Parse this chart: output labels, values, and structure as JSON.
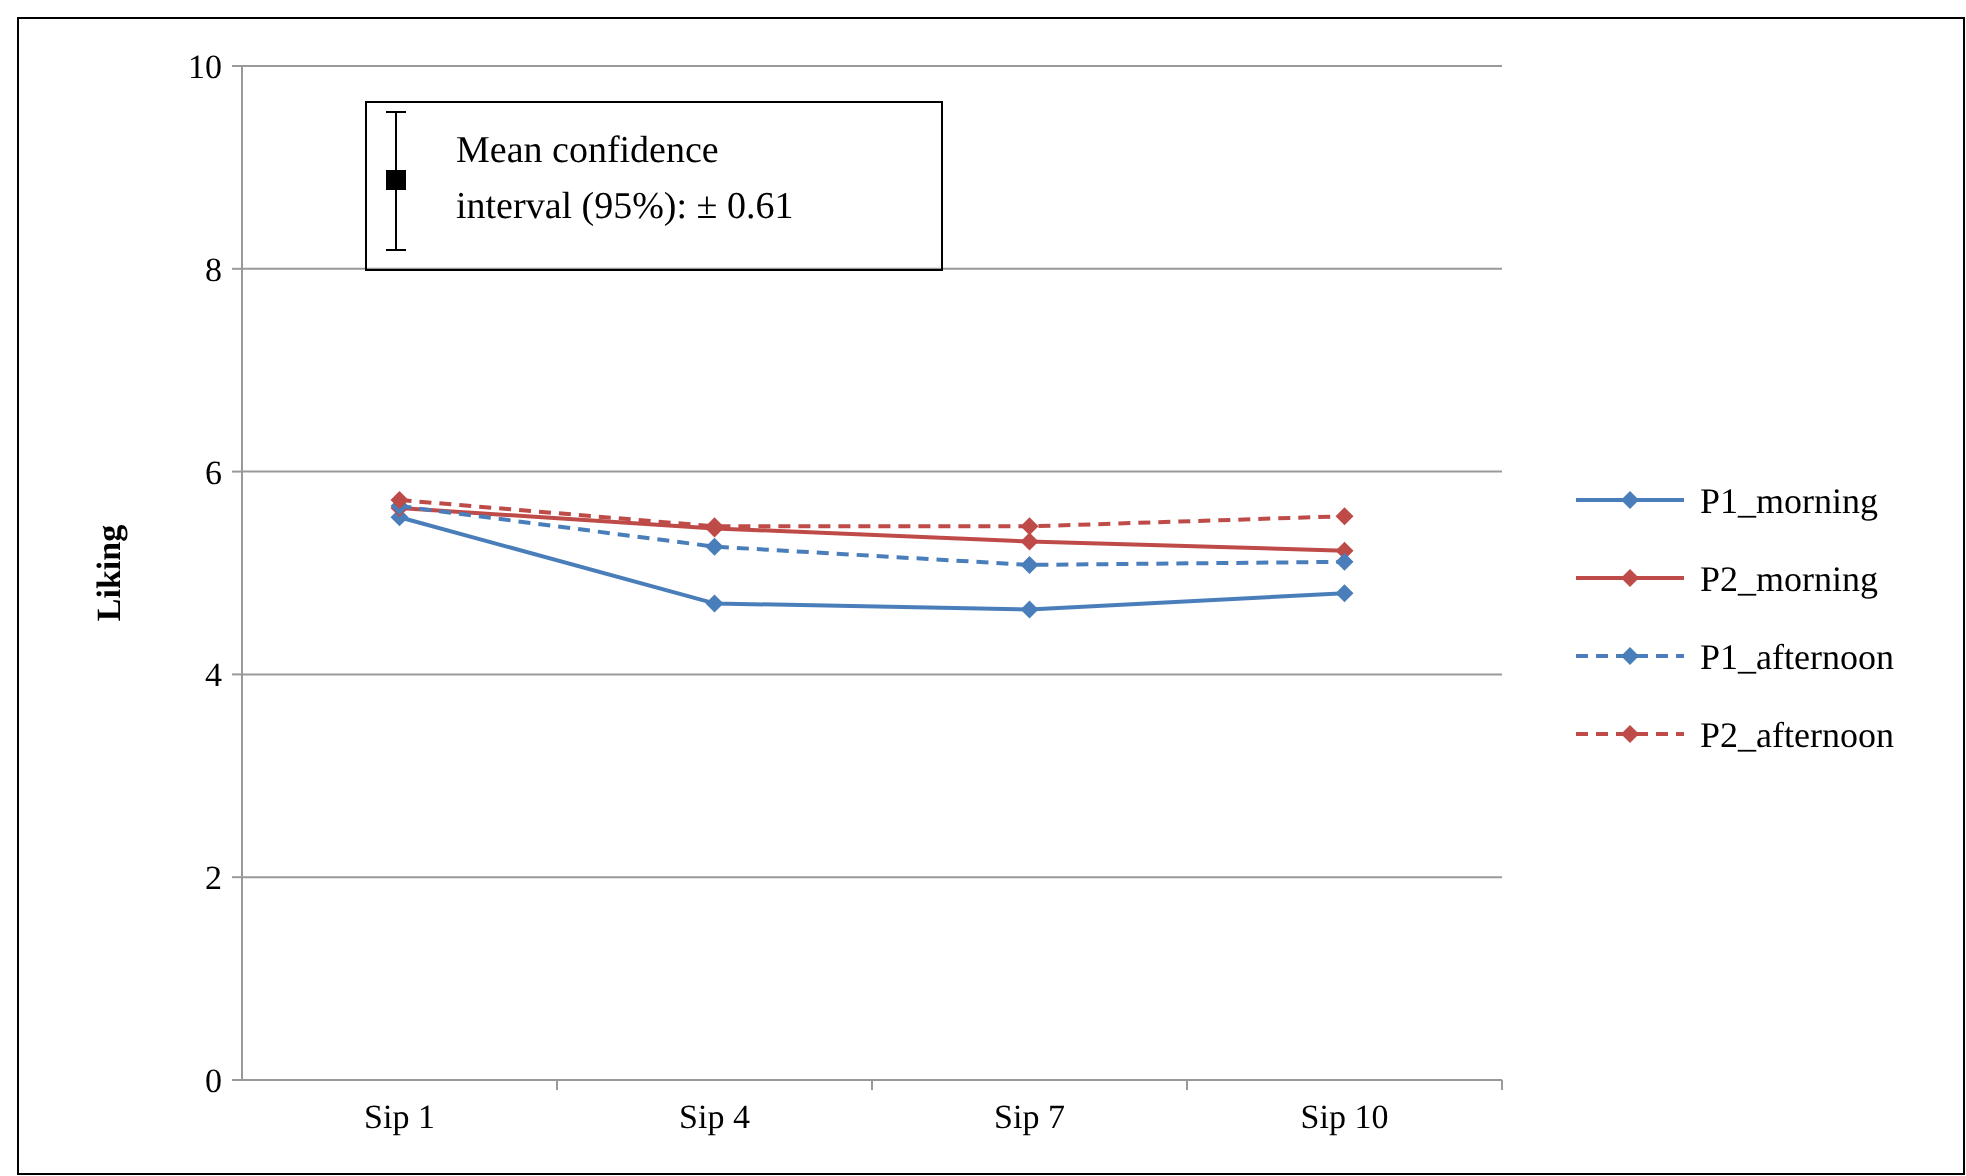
{
  "chart_data": {
    "type": "line",
    "categories": [
      "Sip 1",
      "Sip 4",
      "Sip 7",
      "Sip 10"
    ],
    "series": [
      {
        "name": "P1_morning",
        "color": "#4a7ebb",
        "line_style": "solid",
        "values": [
          5.55,
          4.7,
          4.64,
          4.8
        ]
      },
      {
        "name": "P2_morning",
        "color": "#be4b48",
        "line_style": "solid",
        "values": [
          5.64,
          5.44,
          5.31,
          5.22
        ]
      },
      {
        "name": "P1_afternoon",
        "color": "#4a7ebb",
        "line_style": "dashed",
        "values": [
          5.66,
          5.26,
          5.08,
          5.11
        ]
      },
      {
        "name": "P2_afternoon",
        "color": "#be4b48",
        "line_style": "dashed",
        "values": [
          5.72,
          5.46,
          5.46,
          5.56
        ]
      }
    ],
    "ylabel": "Liking",
    "ylim": [
      0,
      10
    ],
    "yticks": [
      0,
      2,
      4,
      6,
      8,
      10
    ],
    "grid": "y",
    "legend": "right",
    "marker": "diamond",
    "annotations": [
      "Mean confidence interval (95%): ± 0.61"
    ]
  }
}
